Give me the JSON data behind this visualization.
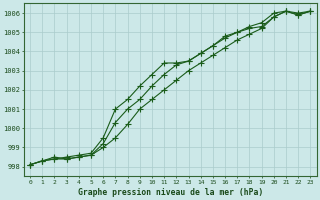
{
  "title": "Graphe pression niveau de la mer (hPa)",
  "xlabel_ticks": [
    0,
    1,
    2,
    3,
    4,
    5,
    6,
    7,
    8,
    9,
    10,
    11,
    12,
    13,
    14,
    15,
    16,
    17,
    18,
    19,
    20,
    21,
    22,
    23
  ],
  "ylim": [
    997.5,
    1006.5
  ],
  "xlim": [
    -0.5,
    23.5
  ],
  "yticks": [
    998,
    999,
    1000,
    1001,
    1002,
    1003,
    1004,
    1005,
    1006
  ],
  "bg_color": "#cce8e8",
  "grid_color": "#aacccc",
  "line_color": "#1a5c1a",
  "line1": [
    998.1,
    998.3,
    998.5,
    998.4,
    998.5,
    998.6,
    999.0,
    999.5,
    1000.2,
    1001.0,
    1001.5,
    1002.0,
    1002.5,
    1003.0,
    1003.4,
    1003.8,
    1004.2,
    1004.6,
    1004.9,
    1005.2,
    1005.8,
    1006.1,
    1005.9,
    1006.1
  ],
  "line2": [
    998.1,
    998.3,
    998.4,
    998.4,
    998.5,
    998.6,
    999.2,
    1000.3,
    1001.0,
    1001.5,
    1002.2,
    1002.8,
    1003.3,
    1003.5,
    1003.9,
    1004.3,
    1004.7,
    1005.0,
    1005.3,
    1005.5,
    1006.0,
    1006.1,
    1005.9,
    1006.1
  ],
  "line3": [
    998.1,
    998.3,
    998.4,
    998.5,
    998.6,
    998.7,
    999.5,
    1001.0,
    1001.5,
    1002.2,
    1002.8,
    1003.4,
    1003.4,
    1003.5,
    1003.9,
    1004.3,
    1004.8,
    1005.0,
    1005.2,
    1005.3,
    1005.8,
    1006.1,
    1006.0,
    1006.1
  ],
  "figsize": [
    3.2,
    2.0
  ],
  "dpi": 100
}
